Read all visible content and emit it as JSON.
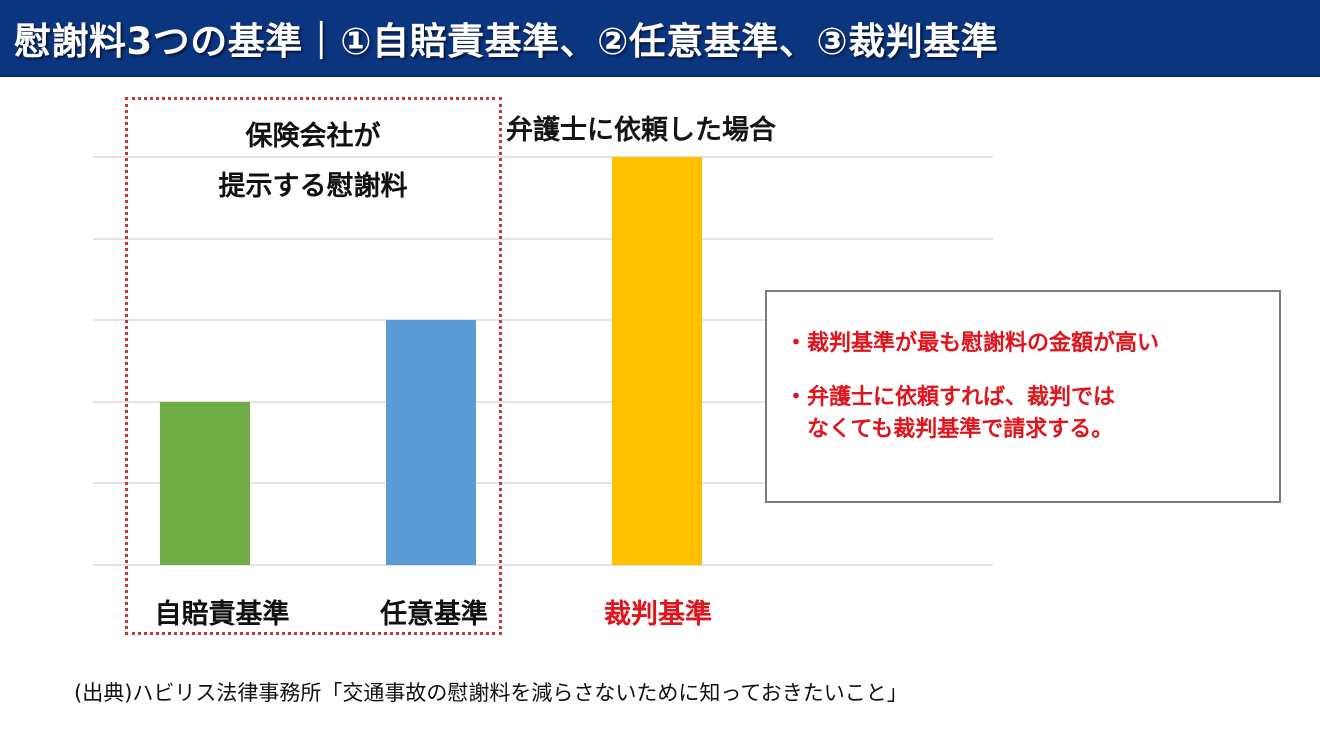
{
  "header": {
    "title": "慰謝料3つの基準｜①自賠責基準、②任意基準、③裁判基準",
    "background_color": "#0c3580"
  },
  "annotations": {
    "insurer_group_label_line1": "保険会社が",
    "insurer_group_label_line2": "提示する慰謝料",
    "lawyer_label": "弁護士に依頼した場合"
  },
  "callout": {
    "items": [
      {
        "line1": "・裁判基準が最も慰謝料の金額が高い",
        "line2": ""
      },
      {
        "line1": "・弁護士に依頼すれば、裁判では",
        "line2": "なくても裁判基準で請求する。"
      }
    ],
    "text_color": "#e0141c"
  },
  "source_note": "(出典)ハビリス法律事務所「交通事故の慰謝料を減らさないために知っておきたいこと」",
  "chart_data": {
    "type": "bar",
    "title": "慰謝料3つの基準",
    "categories": [
      "自賠責基準",
      "任意基準",
      "裁判基準"
    ],
    "values": [
      2,
      3,
      5
    ],
    "colors": [
      "#70ad47",
      "#5b9bd5",
      "#ffc000"
    ],
    "label_colors": [
      "#111111",
      "#111111",
      "#e0141c"
    ],
    "xlabel": "",
    "ylabel": "",
    "ylim": [
      0,
      5
    ],
    "y_ticks_shown": false,
    "grid": true,
    "gridline_count": 6,
    "legend": null,
    "group_annotations": [
      {
        "label": "保険会社が提示する慰謝料",
        "categories": [
          "自賠責基準",
          "任意基準"
        ],
        "style": "red dotted box"
      },
      {
        "label": "弁護士に依頼した場合",
        "categories": [
          "裁判基準"
        ]
      }
    ]
  }
}
